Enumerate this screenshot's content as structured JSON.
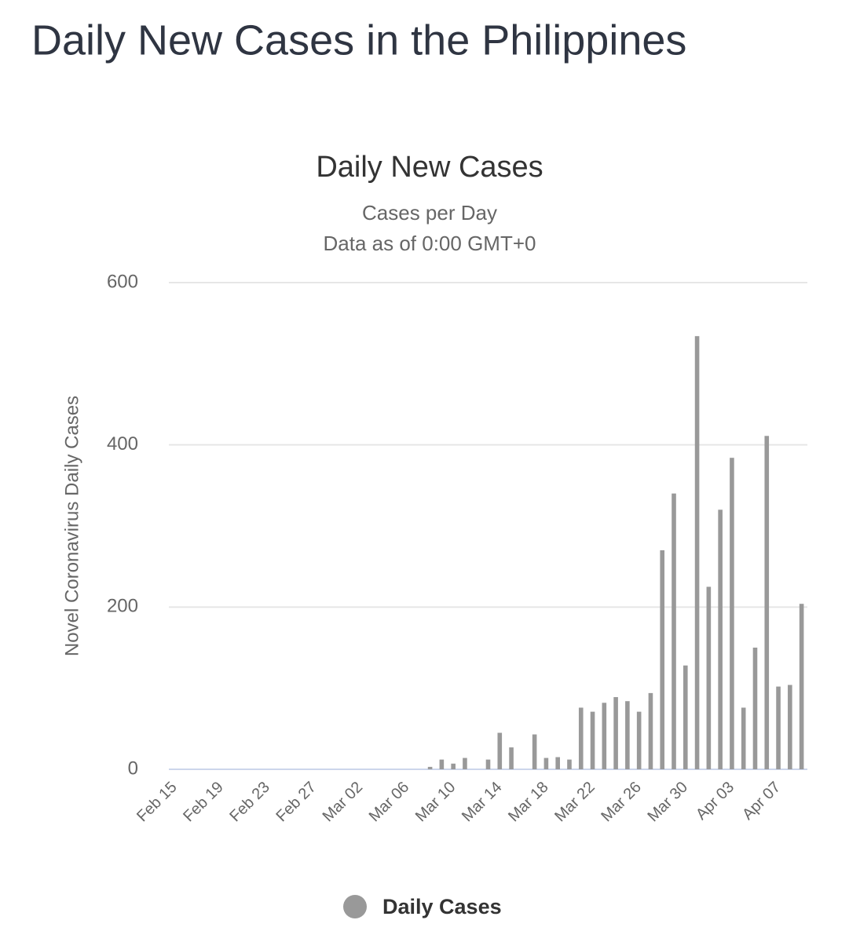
{
  "page_title": "Daily New Cases in the Philippines",
  "chart_data": {
    "type": "bar",
    "title": "Daily New Cases",
    "subtitle": [
      "Cases per Day",
      "Data as of 0:00 GMT+0"
    ],
    "y_axis_label": "Novel Coronavirus Daily Cases",
    "categories": [
      "Feb 15",
      null,
      null,
      null,
      "Feb 19",
      null,
      null,
      null,
      "Feb 23",
      null,
      null,
      null,
      "Feb 27",
      null,
      null,
      null,
      "Mar 02",
      null,
      null,
      null,
      "Mar 06",
      null,
      null,
      null,
      "Mar 10",
      null,
      null,
      null,
      "Mar 14",
      null,
      null,
      null,
      "Mar 18",
      null,
      null,
      null,
      "Mar 22",
      null,
      null,
      null,
      "Mar 26",
      null,
      null,
      null,
      "Mar 30",
      null,
      null,
      null,
      "Apr 03",
      null,
      null,
      null,
      "Apr 07",
      null,
      null
    ],
    "series": [
      {
        "name": "Daily Cases",
        "color": "#999999",
        "values": [
          0,
          0,
          0,
          0,
          0,
          0,
          0,
          0,
          0,
          0,
          0,
          0,
          0,
          0,
          0,
          0,
          0,
          0,
          0,
          0,
          0,
          0,
          3,
          12,
          7,
          14,
          0,
          12,
          45,
          27,
          0,
          43,
          14,
          15,
          12,
          76,
          71,
          82,
          89,
          84,
          71,
          94,
          270,
          340,
          128,
          534,
          225,
          320,
          384,
          76,
          150,
          411,
          102,
          104,
          204
        ]
      }
    ],
    "ylim": [
      0,
      600
    ],
    "yticks": [
      0,
      200,
      400,
      600
    ],
    "grid": true,
    "legend": "bottom"
  }
}
